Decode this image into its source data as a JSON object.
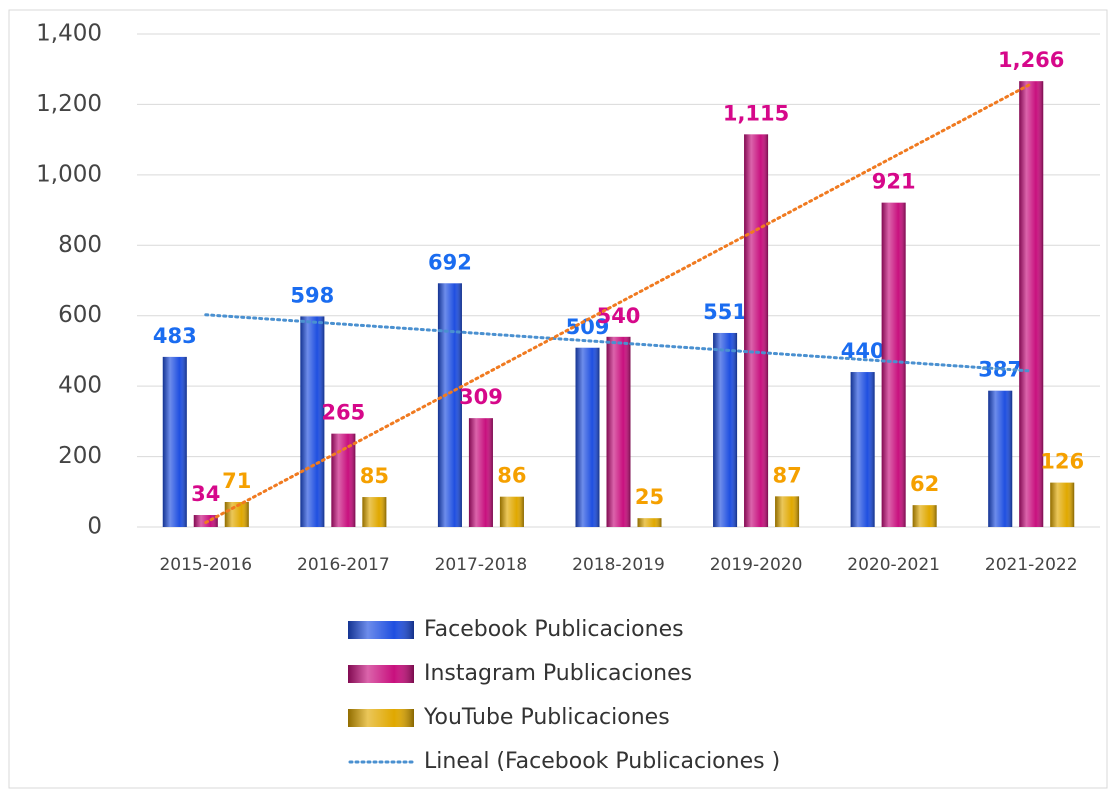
{
  "chart_data": {
    "type": "bar",
    "categories": [
      "2015-2016",
      "2016-2017",
      "2017-2018",
      "2018-2019",
      "2019-2020",
      "2020-2021",
      "2021-2022"
    ],
    "series": [
      {
        "name": "Facebook Publicaciones",
        "color": "#1f4fe0",
        "label_color": "#1a6cf0",
        "values": [
          483,
          598,
          692,
          509,
          551,
          440,
          387
        ]
      },
      {
        "name": "Instagram Publicaciones",
        "color": "#c8107e",
        "label_color": "#d6088a",
        "values": [
          34,
          265,
          309,
          540,
          1115,
          921,
          1266
        ],
        "value_labels": [
          "34",
          "265",
          "309",
          "540",
          "1,115",
          "921",
          "1,266"
        ]
      },
      {
        "name": "YouTube Publicaciones",
        "color": "#e0a800",
        "label_color": "#f5a000",
        "values": [
          71,
          85,
          86,
          25,
          87,
          62,
          126
        ]
      }
    ],
    "trendlines": [
      {
        "series": 0,
        "name": "Lineal (Facebook Publicaciones )",
        "color": "#4a90d0"
      },
      {
        "series": 1,
        "color": "#f07a20"
      }
    ],
    "ylim": [
      0,
      1400
    ],
    "yticks": [
      0,
      200,
      400,
      600,
      800,
      {
        "value": 1000,
        "label": "1,000"
      },
      {
        "value": 1200,
        "label": "1,200"
      },
      {
        "value": 1400,
        "label": "1,400"
      }
    ],
    "grid": true,
    "legend": "bottom"
  }
}
